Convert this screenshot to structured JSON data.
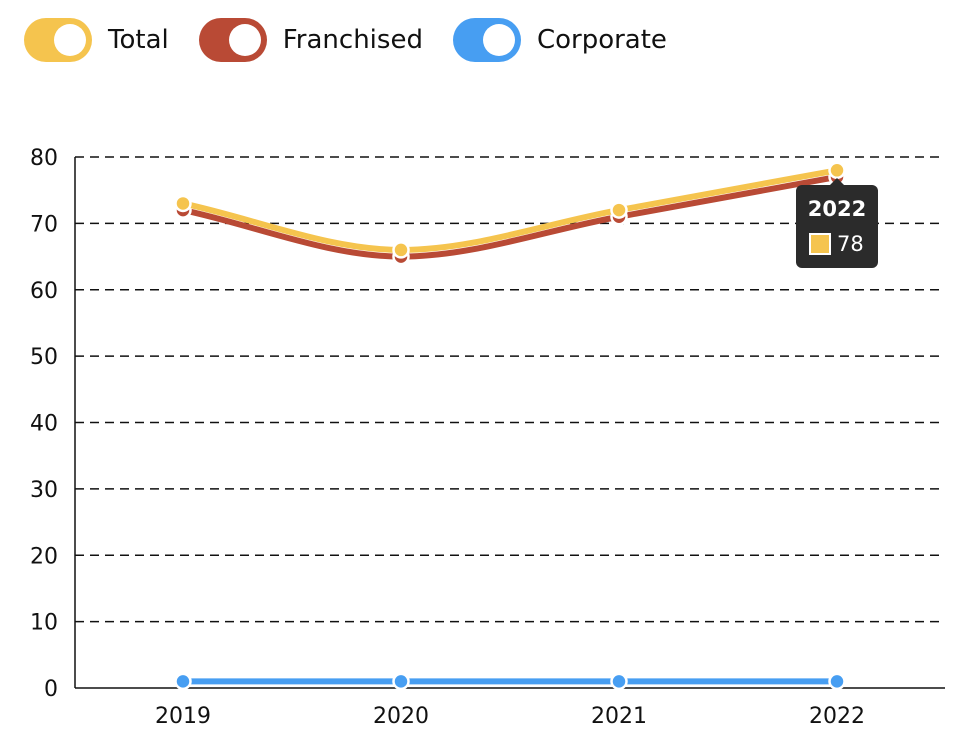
{
  "legend": [
    {
      "label": "Total",
      "color": "#F5C44E"
    },
    {
      "label": "Franchised",
      "color": "#B94A35"
    },
    {
      "label": "Corporate",
      "color": "#479EF2"
    }
  ],
  "chart_data": {
    "type": "line",
    "categories": [
      "2019",
      "2020",
      "2021",
      "2022"
    ],
    "series": [
      {
        "name": "Franchised",
        "color": "#B94A35",
        "values": [
          72,
          65,
          71,
          77
        ]
      },
      {
        "name": "Corporate",
        "color": "#479EF2",
        "values": [
          1,
          1,
          1,
          1
        ]
      },
      {
        "name": "Total",
        "color": "#F5C44E",
        "values": [
          73,
          66,
          72,
          78
        ]
      }
    ],
    "ylim": [
      0,
      80
    ],
    "yticks": [
      0,
      10,
      20,
      30,
      40,
      50,
      60,
      70,
      80
    ],
    "grid": "dashed-horizontal",
    "legend_position": "top-left",
    "tooltip": {
      "title": "2022",
      "value": "78",
      "color": "#F5C44E"
    }
  }
}
